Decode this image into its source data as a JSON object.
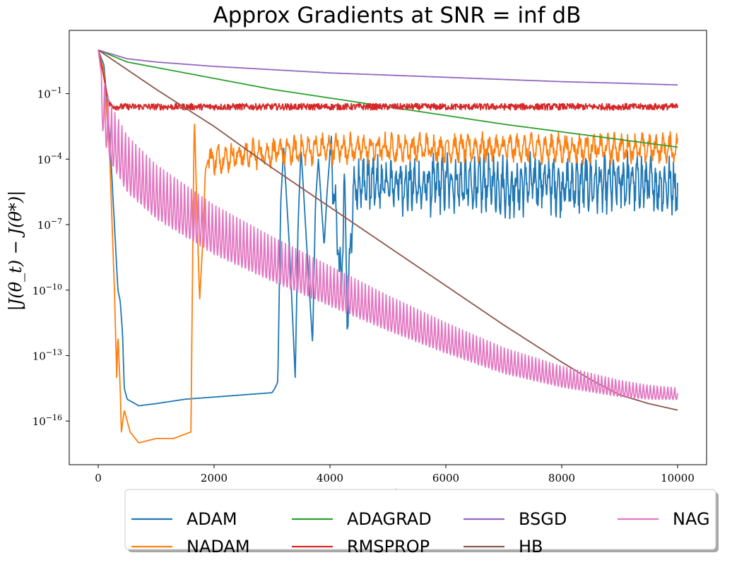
{
  "chart_data": {
    "type": "line",
    "title": "Approx Gradients at SNR = inf dB",
    "xlabel": "t",
    "ylabel": "|J(θ_t) − J(θ*)|",
    "xlim": [
      -500,
      10500
    ],
    "ylim_log10": [
      -18,
      1.9
    ],
    "yscale": "log",
    "grid": false,
    "legend_placement": "below plot, 4 columns",
    "x_ticks": [
      0,
      2000,
      4000,
      6000,
      8000,
      10000
    ],
    "x_tick_labels": [
      "0",
      "2000",
      "4000",
      "6000",
      "8000",
      "10000"
    ],
    "y_ticks_log10": [
      -1,
      -4,
      -7,
      -10,
      -13,
      -16
    ],
    "y_tick_labels": [
      "10−1",
      "10−4",
      "10−7",
      "10−10",
      "10−13",
      "10−16"
    ],
    "y_tick_base": "10",
    "y_tick_exponents": [
      "−1",
      "−4",
      "−7",
      "−10",
      "−13",
      "−16"
    ],
    "legend_order": [
      "ADAM",
      "NADAM",
      "ADAGRAD",
      "RMSPROP",
      "BSGD",
      "HB",
      "NAG"
    ],
    "series": [
      {
        "name": "ADAM",
        "color": "#1f77b4",
        "points_log10": [
          [
            0,
            1.0
          ],
          [
            100,
            0.3
          ],
          [
            200,
            -3.0
          ],
          [
            300,
            -8.0
          ],
          [
            340,
            -10.0
          ],
          [
            380,
            -10.5
          ],
          [
            420,
            -12.0
          ],
          [
            450,
            -14.5
          ],
          [
            500,
            -15.0
          ],
          [
            700,
            -15.3
          ],
          [
            1000,
            -15.2
          ],
          [
            1500,
            -15.0
          ],
          [
            2000,
            -14.9
          ],
          [
            2500,
            -14.8
          ],
          [
            3000,
            -14.7
          ],
          [
            3050,
            -14.5
          ],
          [
            3100,
            -14.2
          ],
          [
            3150,
            -6.0
          ],
          [
            3200,
            -3.5
          ],
          [
            3300,
            -8.0
          ],
          [
            3400,
            -14.0
          ],
          [
            3450,
            -7.0
          ],
          [
            3500,
            -3.5
          ],
          [
            3600,
            -8.0
          ],
          [
            3700,
            -12.5
          ],
          [
            3750,
            -6.0
          ],
          [
            3800,
            -4.0
          ],
          [
            3900,
            -8.0
          ],
          [
            3950,
            -5.5
          ],
          [
            4000,
            -3.8
          ],
          [
            4100,
            -6.5
          ],
          [
            4200,
            -10.0
          ],
          [
            4250,
            -4.5
          ],
          [
            4300,
            -11.5
          ],
          [
            4400,
            -5.5
          ],
          [
            4500,
            -5.0
          ],
          [
            4800,
            -5.2
          ],
          [
            5200,
            -5.1
          ],
          [
            5600,
            -5.3
          ],
          [
            6000,
            -5.0
          ],
          [
            6400,
            -5.2
          ],
          [
            6800,
            -5.1
          ],
          [
            7200,
            -5.3
          ],
          [
            7600,
            -5.0
          ],
          [
            8000,
            -5.2
          ],
          [
            8400,
            -5.1
          ],
          [
            8800,
            -5.2
          ],
          [
            9200,
            -5.0
          ],
          [
            9600,
            -5.2
          ],
          [
            10000,
            -5.2
          ]
        ],
        "oscillation": {
          "start": 4000,
          "end": 10000,
          "period": 80,
          "amplitude_log10": 1.4
        }
      },
      {
        "name": "NADAM",
        "color": "#ff7f0e",
        "points_log10": [
          [
            0,
            1.0
          ],
          [
            100,
            0.0
          ],
          [
            200,
            -4.0
          ],
          [
            280,
            -10.0
          ],
          [
            320,
            -14.0
          ],
          [
            340,
            -12.0
          ],
          [
            380,
            -14.5
          ],
          [
            400,
            -16.5
          ],
          [
            450,
            -15.5
          ],
          [
            550,
            -16.5
          ],
          [
            700,
            -17.0
          ],
          [
            1000,
            -16.8
          ],
          [
            1300,
            -16.8
          ],
          [
            1600,
            -16.5
          ],
          [
            1640,
            -6.0
          ],
          [
            1660,
            -2.0
          ],
          [
            1700,
            -6.0
          ],
          [
            1750,
            -10.5
          ],
          [
            1800,
            -8.0
          ],
          [
            1850,
            -4.5
          ],
          [
            1900,
            -4.0
          ],
          [
            2000,
            -4.0
          ],
          [
            2500,
            -3.8
          ],
          [
            3000,
            -3.7
          ],
          [
            3500,
            -3.6
          ],
          [
            4000,
            -3.5
          ],
          [
            5000,
            -3.5
          ],
          [
            6000,
            -3.5
          ],
          [
            7000,
            -3.5
          ],
          [
            8000,
            -3.5
          ],
          [
            9000,
            -3.5
          ],
          [
            10000,
            -3.5
          ]
        ],
        "oscillation": {
          "start": 1900,
          "end": 10000,
          "period": 120,
          "amplitude_log10": 0.7
        }
      },
      {
        "name": "ADAGRAD",
        "color": "#2ca02c",
        "points_log10": [
          [
            0,
            1.0
          ],
          [
            500,
            0.45
          ],
          [
            1000,
            0.2
          ],
          [
            2000,
            -0.3
          ],
          [
            3000,
            -0.8
          ],
          [
            4000,
            -1.2
          ],
          [
            5000,
            -1.6
          ],
          [
            6000,
            -2.0
          ],
          [
            7000,
            -2.4
          ],
          [
            8000,
            -2.75
          ],
          [
            9000,
            -3.1
          ],
          [
            10000,
            -3.45
          ]
        ]
      },
      {
        "name": "RMSPROP",
        "color": "#d62728",
        "points_log10": [
          [
            0,
            1.0
          ],
          [
            80,
            0.0
          ],
          [
            150,
            -1.0
          ],
          [
            200,
            -1.5
          ],
          [
            300,
            -1.6
          ],
          [
            1000,
            -1.6
          ],
          [
            3000,
            -1.6
          ],
          [
            5000,
            -1.6
          ],
          [
            7000,
            -1.6
          ],
          [
            9000,
            -1.6
          ],
          [
            10000,
            -1.6
          ]
        ],
        "oscillation": {
          "start": 200,
          "end": 10000,
          "period": 25,
          "amplitude_log10": 0.15
        }
      },
      {
        "name": "BSGD",
        "color": "#9467bd",
        "points_log10": [
          [
            0,
            1.0
          ],
          [
            500,
            0.6
          ],
          [
            1000,
            0.45
          ],
          [
            2000,
            0.25
          ],
          [
            3000,
            0.1
          ],
          [
            4000,
            -0.05
          ],
          [
            5000,
            -0.15
          ],
          [
            6000,
            -0.25
          ],
          [
            7000,
            -0.35
          ],
          [
            8000,
            -0.45
          ],
          [
            9000,
            -0.52
          ],
          [
            10000,
            -0.6
          ]
        ]
      },
      {
        "name": "HB",
        "color": "#8c564b",
        "points_log10": [
          [
            0,
            1.0
          ],
          [
            1000,
            -0.8
          ],
          [
            2000,
            -2.5
          ],
          [
            3000,
            -4.4
          ],
          [
            4000,
            -6.2
          ],
          [
            5000,
            -8.0
          ],
          [
            6000,
            -9.8
          ],
          [
            7000,
            -11.6
          ],
          [
            8000,
            -13.3
          ],
          [
            8500,
            -14.1
          ],
          [
            9000,
            -14.8
          ],
          [
            9500,
            -15.2
          ],
          [
            10000,
            -15.5
          ]
        ]
      },
      {
        "name": "NAG",
        "color": "#e377c2",
        "points_log10": [
          [
            0,
            1.0
          ],
          [
            100,
            -1.0
          ],
          [
            200,
            -2.0
          ],
          [
            500,
            -3.5
          ],
          [
            1000,
            -4.8
          ],
          [
            1500,
            -5.7
          ],
          [
            2000,
            -6.6
          ],
          [
            3000,
            -8.0
          ],
          [
            4000,
            -9.3
          ],
          [
            5000,
            -10.6
          ],
          [
            6000,
            -11.8
          ],
          [
            7000,
            -12.9
          ],
          [
            8000,
            -13.7
          ],
          [
            8500,
            -14.0
          ],
          [
            9000,
            -14.3
          ],
          [
            9500,
            -14.5
          ],
          [
            10000,
            -14.6
          ]
        ],
        "oscillation": {
          "start": 50,
          "end": 10000,
          "period": 60,
          "amplitude_log10": 1.5,
          "decay_to": 0.3
        }
      }
    ]
  }
}
